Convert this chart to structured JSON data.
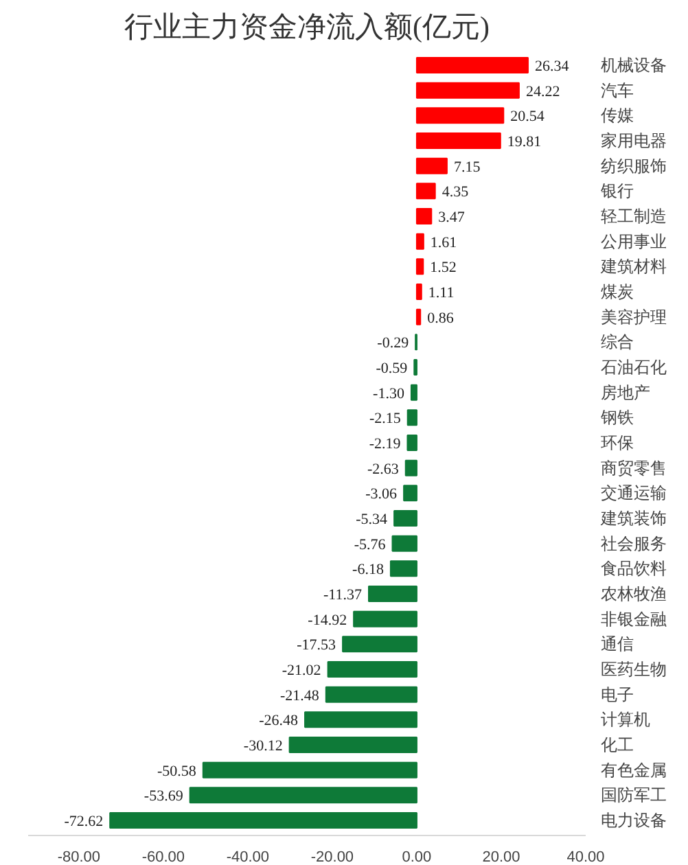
{
  "chart_data": {
    "type": "bar",
    "orientation": "horizontal",
    "title": "行业主力资金净流入额(亿元)",
    "categories": [
      "机械设备",
      "汽车",
      "传媒",
      "家用电器",
      "纺织服饰",
      "银行",
      "轻工制造",
      "公用事业",
      "建筑材料",
      "煤炭",
      "美容护理",
      "综合",
      "石油石化",
      "房地产",
      "钢铁",
      "环保",
      "商贸零售",
      "交通运输",
      "建筑装饰",
      "社会服务",
      "食品饮料",
      "农林牧渔",
      "非银金融",
      "通信",
      "医药生物",
      "电子",
      "计算机",
      "化工",
      "有色金属",
      "国防军工",
      "电力设备"
    ],
    "values": [
      26.34,
      24.22,
      20.54,
      19.81,
      7.15,
      4.35,
      3.47,
      1.61,
      1.52,
      1.11,
      0.86,
      -0.29,
      -0.59,
      -1.3,
      -2.15,
      -2.19,
      -2.63,
      -3.06,
      -5.34,
      -5.76,
      -6.18,
      -11.37,
      -14.92,
      -17.53,
      -21.02,
      -21.48,
      -26.48,
      -30.12,
      -50.58,
      -53.69,
      -72.62
    ],
    "colors": [
      "#ff0000",
      "#ff0000",
      "#ff0000",
      "#ff0000",
      "#ff0000",
      "#ff0000",
      "#ff0000",
      "#ff0000",
      "#ff0000",
      "#ff0000",
      "#ff0000",
      "#0e7a38",
      "#0e7a38",
      "#0e7a38",
      "#0e7a38",
      "#0e7a38",
      "#0e7a38",
      "#0e7a38",
      "#0e7a38",
      "#0e7a38",
      "#0e7a38",
      "#0e7a38",
      "#0e7a38",
      "#0e7a38",
      "#0e7a38",
      "#0e7a38",
      "#0e7a38",
      "#0e7a38",
      "#0e7a38",
      "#0e7a38",
      "#0e7a38"
    ],
    "value_labels": [
      "26.34",
      "24.22",
      "20.54",
      "19.81",
      "7.15",
      "4.35",
      "3.47",
      "1.61",
      "1.52",
      "1.11",
      "0.86",
      "-0.29",
      "-0.59",
      "-1.30",
      "-2.15",
      "-2.19",
      "-2.63",
      "-3.06",
      "-5.34",
      "-5.76",
      "-6.18",
      "-11.37",
      "-14.92",
      "-17.53",
      "-21.02",
      "-21.48",
      "-26.48",
      "-30.12",
      "-50.58",
      "-53.69",
      "-72.62"
    ],
    "xlim": [
      -92,
      40
    ],
    "xticks": [
      {
        "value": -80,
        "label": "-80.00"
      },
      {
        "value": -60,
        "label": "-60.00"
      },
      {
        "value": -40,
        "label": "-40.00"
      },
      {
        "value": -20,
        "label": "-20.00"
      },
      {
        "value": 0,
        "label": "0.00"
      },
      {
        "value": 20,
        "label": "20.00"
      },
      {
        "value": 40,
        "label": "40.00"
      }
    ],
    "grid": false
  }
}
